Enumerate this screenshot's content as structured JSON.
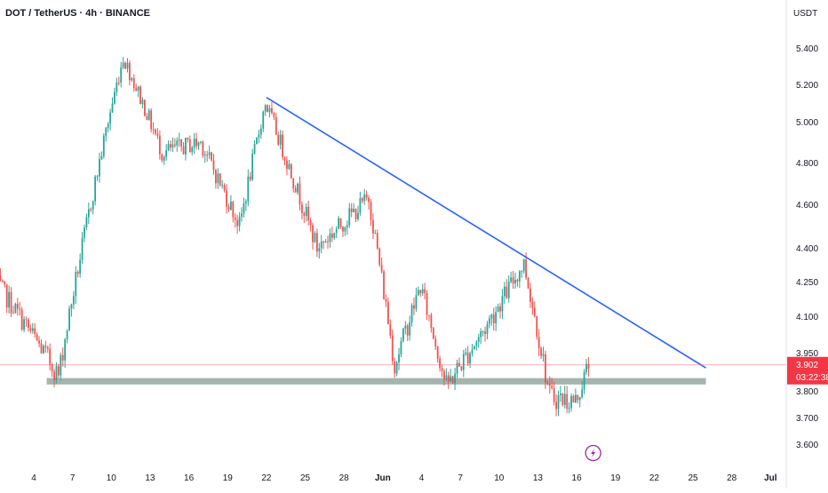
{
  "chart_data": {
    "type": "candlestick",
    "title": "DOT / TetherUS · 4h · BINANCE",
    "currency": "USDT",
    "y_ticks": [
      "5.400",
      "5.200",
      "5.000",
      "4.800",
      "4.600",
      "4.400",
      "4.250",
      "4.100",
      "3.950",
      "3.800",
      "3.700",
      "3.600"
    ],
    "x_ticks": [
      "4",
      "7",
      "10",
      "13",
      "16",
      "19",
      "22",
      "25",
      "28",
      "Jun",
      "4",
      "7",
      "10",
      "13",
      "16",
      "19",
      "22",
      "25",
      "28",
      "Jul"
    ],
    "last_price": "3.902",
    "countdown": "03:22:38",
    "trendline": {
      "from": {
        "date": "May 22",
        "price": 5.13
      },
      "to": {
        "date": "Jun 25",
        "price": 3.89
      }
    },
    "support_zone": {
      "from": "May 5",
      "to": "Jun 25",
      "low": 3.825,
      "high": 3.85
    },
    "key_points": [
      {
        "date": "May 1",
        "price": 4.26
      },
      {
        "date": "May 6",
        "price": 3.86
      },
      {
        "date": "May 11",
        "price": 5.35
      },
      {
        "date": "May 14",
        "price": 4.85
      },
      {
        "date": "May 17",
        "price": 4.9
      },
      {
        "date": "May 20",
        "price": 4.5
      },
      {
        "date": "May 22",
        "price": 5.1
      },
      {
        "date": "May 26",
        "price": 4.4
      },
      {
        "date": "May 30",
        "price": 4.63
      },
      {
        "date": "Jun 1",
        "price": 3.9
      },
      {
        "date": "Jun 3",
        "price": 4.23
      },
      {
        "date": "Jun 5",
        "price": 3.82
      },
      {
        "date": "Jun 8",
        "price": 4.05
      },
      {
        "date": "Jun 11",
        "price": 4.33
      },
      {
        "date": "Jun 13",
        "price": 3.78
      },
      {
        "date": "Jun 15",
        "price": 3.76
      },
      {
        "date": "Jun 16",
        "price": 3.9
      }
    ],
    "colors": {
      "up": "#26a69a",
      "down": "#ef5350",
      "trendline": "#2962ff",
      "zone": "#a5b4ad",
      "price_line": "#f7525f",
      "grid": "#f0f3fa",
      "marker": "#9c27b0"
    },
    "grid": false
  }
}
